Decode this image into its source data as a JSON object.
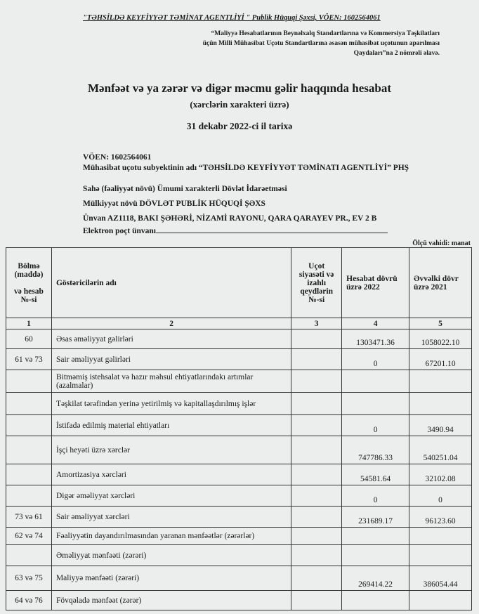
{
  "header": {
    "company_line": "\"TƏHSİLDƏ KEYFİYYƏT TƏMİNAT AGENTLİYİ \" Publik Hüquqi Şəxsi,  VÖEN: 1602564061",
    "reference": [
      "“Maliyyə Hesabatlarının Beynəlxalq Standartlarına və    Kommersiya Təşkilatları",
      "üçün Milli Mühasibat Uçotu Standartlarına əsasən mühasibat uçotunun aparılması",
      "Qaydaları”na 2 nömrəli əlavə."
    ]
  },
  "title": "Mənfəət və ya zərər və digər məcmu gəlir haqqında hesabat",
  "subtitle": "(xərclərin xarakteri üzrə)",
  "date": "31 dekabr 2022-ci il tarixə",
  "info": {
    "voen": "VÖEN:  1602564061",
    "entity": "Mühasibat uçotu subyektinin adı “TƏHSİLDƏ KEYFİYYƏT TƏMİNATI AGENTLİYİ” PHŞ",
    "sector": "Sahə (fəaliyyət növü) Ümumi xarakterli Dövlət İdarəetməsi",
    "ownership": "Mülkiyyət növü  DÖVLƏT PUBLİK HÜQUQİ ŞƏXS",
    "address": "Ünvan AZ1118, BAKI ŞƏHƏRİ, NİZAMİ RAYONU,  QARA QARAYEV PR., EV 2 B",
    "email_label": "Elektron poçt ünvanı"
  },
  "unit": "Ölçü vahidi: manat",
  "table": {
    "headers": [
      "Bölmə (maddə)\n\nvə hesab №-si",
      "Göstəricilərin adı",
      "Uçot siyasəti və izahlı qeydlərin №-si",
      "Hesabat dövrü üzrə   2022",
      "Əvvəlki dövr üzrə    2021"
    ],
    "col_numbers": [
      "1",
      "2",
      "3",
      "4",
      "5"
    ],
    "rows": [
      {
        "code": "60",
        "name": "Əsas əməliyyat gəlirləri",
        "note": "",
        "y2022": "1303471.36",
        "y2021": "1058022.10"
      },
      {
        "code": "61 və 73",
        "name": "Sair əməliyyat gəlirləri",
        "note": "",
        "y2022": "0",
        "y2021": "67201.10"
      },
      {
        "code": "",
        "name": "Bitməmiş istehsalat və hazır məhsul ehtiyatlarındakı artımlar (azalmalar)",
        "note": "",
        "y2022": "",
        "y2021": ""
      },
      {
        "code": "",
        "name": "Təşkilat tərəfindən yerinə yetirilmiş və kapitallaşdırılmış işlər",
        "note": "",
        "y2022": "",
        "y2021": ""
      },
      {
        "code": "",
        "name": "İstifadə edilmiş material ehtiyatları",
        "note": "",
        "y2022": "0",
        "y2021": "3490.94"
      },
      {
        "code": "",
        "name": "İşçi heyəti üzrə xərclər",
        "note": "",
        "y2022": "747786.33",
        "y2021": "540251.04"
      },
      {
        "code": "",
        "name": "Amortizasiya xərcləri",
        "note": "",
        "y2022": "54581.64",
        "y2021": "32102.08"
      },
      {
        "code": "",
        "name": "Digər əməliyyat xərcləri",
        "note": "",
        "y2022": "0",
        "y2021": "0"
      },
      {
        "code": "73 və 61",
        "name": "Sair əməliyyat xərcləri",
        "note": "",
        "y2022": "231689.17",
        "y2021": "96123.60"
      },
      {
        "code": "62 və 74",
        "name": "Fəaliyyətin dayandırılmasından yaranan mənfəətlər (zərərlər)",
        "note": "",
        "y2022": "",
        "y2021": ""
      },
      {
        "code": "",
        "name": "Əməliyyat mənfəəti (zərəri)",
        "note": "",
        "y2022": "",
        "y2021": ""
      },
      {
        "code": "63 və 75",
        "name": "Maliyyə mənfəəti (zərəri)",
        "note": "",
        "y2022": "269414.22",
        "y2021": "386054.44"
      },
      {
        "code": "64 və 76",
        "name": "Fövqəladə mənfəət (zərər)",
        "note": "",
        "y2022": "",
        "y2021": ""
      }
    ]
  }
}
